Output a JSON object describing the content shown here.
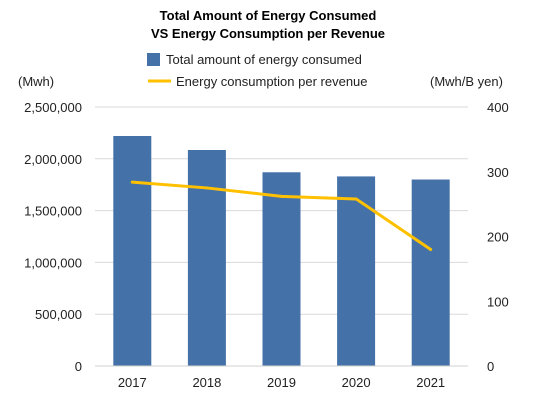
{
  "chart_data": {
    "type": "bar+line",
    "title_line1": "Total Amount of Energy Consumed",
    "title_line2": "VS Energy Consumption per Revenue",
    "left_unit": "(Mwh)",
    "right_unit": "(Mwh/B yen)",
    "categories": [
      "2017",
      "2018",
      "2019",
      "2020",
      "2021"
    ],
    "bar_series": {
      "name": "Total amount of energy consumed",
      "color": "#4472A8",
      "values": [
        2220000,
        2085000,
        1870000,
        1830000,
        1800000
      ]
    },
    "line_series": {
      "name": "Energy consumption per revenue",
      "color": "#FFC000",
      "values": [
        284,
        275,
        262,
        258,
        180
      ]
    },
    "left_axis": {
      "ylim": [
        0,
        2500000
      ],
      "ticks": [
        0,
        500000,
        1000000,
        1500000,
        2000000,
        2500000
      ],
      "tick_labels": [
        "0",
        "500,000",
        "1,000,000",
        "1,500,000",
        "2,000,000",
        "2,500,000"
      ]
    },
    "right_axis": {
      "ylim": [
        0,
        400
      ],
      "ticks": [
        0,
        100,
        200,
        300,
        400
      ],
      "tick_labels": [
        "0",
        "100",
        "200",
        "300",
        "400"
      ]
    },
    "grid": true,
    "legend_position": "top"
  }
}
